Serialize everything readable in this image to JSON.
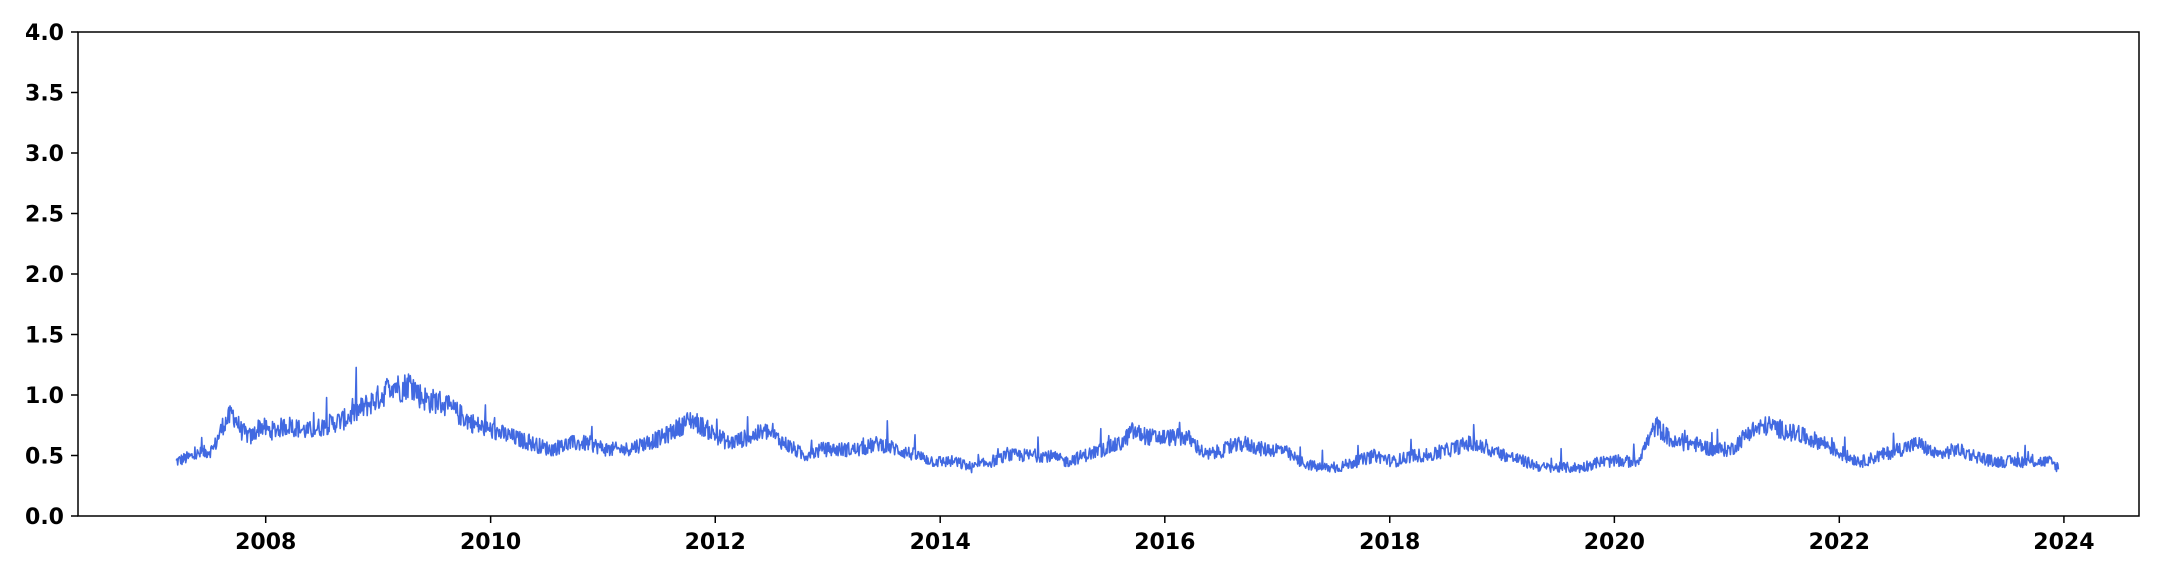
{
  "chart_data": {
    "type": "line",
    "title": "",
    "xlabel": "",
    "ylabel": "",
    "xlim": [
      "2006-05-01",
      "2024-09-01"
    ],
    "ylim": [
      0,
      4.0
    ],
    "x_ticks": [
      "2008",
      "2010",
      "2012",
      "2014",
      "2016",
      "2018",
      "2020",
      "2022",
      "2024"
    ],
    "y_ticks": [
      "0.0",
      "0.5",
      "1.0",
      "1.5",
      "2.0",
      "2.5",
      "3.0",
      "3.5",
      "4.0"
    ],
    "grid": false,
    "legend": "none",
    "colors": {
      "line": "#4169e1"
    },
    "series": [
      {
        "x": [
          "2007-03",
          "2007-05",
          "2007-07",
          "2007-08",
          "2007-09",
          "2007-10",
          "2007-11",
          "2007-12",
          "2008-01",
          "2008-03",
          "2008-05",
          "2008-07",
          "2008-09",
          "2008-11",
          "2009-01",
          "2009-02",
          "2009-03",
          "2009-04",
          "2009-05",
          "2009-06",
          "2009-07",
          "2009-09",
          "2009-11",
          "2010-01",
          "2010-03",
          "2010-05",
          "2010-07",
          "2010-09",
          "2010-11",
          "2011-01",
          "2011-03",
          "2011-05",
          "2011-07",
          "2011-09",
          "2011-10",
          "2011-12",
          "2012-02",
          "2012-04",
          "2012-06",
          "2012-08",
          "2012-10",
          "2012-12",
          "2013-02",
          "2013-04",
          "2013-06",
          "2013-08",
          "2013-10",
          "2013-12",
          "2014-02",
          "2014-04",
          "2014-06",
          "2014-08",
          "2014-10",
          "2014-12",
          "2015-02",
          "2015-04",
          "2015-06",
          "2015-08",
          "2015-09",
          "2015-11",
          "2016-01",
          "2016-03",
          "2016-05",
          "2016-07",
          "2016-09",
          "2016-11",
          "2017-01",
          "2017-03",
          "2017-05",
          "2017-07",
          "2017-09",
          "2017-11",
          "2018-01",
          "2018-03",
          "2018-05",
          "2018-07",
          "2018-09",
          "2018-11",
          "2019-01",
          "2019-03",
          "2019-05",
          "2019-07",
          "2019-09",
          "2019-11",
          "2020-01",
          "2020-03",
          "2020-04",
          "2020-05",
          "2020-07",
          "2020-09",
          "2020-11",
          "2021-01",
          "2021-03",
          "2021-05",
          "2021-07",
          "2021-09",
          "2021-11",
          "2022-01",
          "2022-03",
          "2022-05",
          "2022-07",
          "2022-09",
          "2022-11",
          "2023-01",
          "2023-03",
          "2023-05",
          "2023-07",
          "2023-09",
          "2023-11",
          "2023-12"
        ],
        "values": [
          0.45,
          0.5,
          0.55,
          0.75,
          0.85,
          0.7,
          0.65,
          0.75,
          0.7,
          0.75,
          0.7,
          0.75,
          0.8,
          0.9,
          1.0,
          1.1,
          1.05,
          1.1,
          1.0,
          0.95,
          0.95,
          0.85,
          0.75,
          0.7,
          0.65,
          0.6,
          0.55,
          0.6,
          0.6,
          0.55,
          0.55,
          0.6,
          0.65,
          0.75,
          0.8,
          0.7,
          0.6,
          0.65,
          0.7,
          0.6,
          0.5,
          0.55,
          0.55,
          0.55,
          0.6,
          0.55,
          0.5,
          0.45,
          0.45,
          0.4,
          0.45,
          0.5,
          0.5,
          0.5,
          0.45,
          0.5,
          0.55,
          0.6,
          0.7,
          0.65,
          0.65,
          0.65,
          0.5,
          0.55,
          0.6,
          0.55,
          0.55,
          0.45,
          0.4,
          0.4,
          0.45,
          0.5,
          0.45,
          0.5,
          0.5,
          0.55,
          0.6,
          0.55,
          0.5,
          0.45,
          0.4,
          0.4,
          0.4,
          0.45,
          0.45,
          0.45,
          0.6,
          0.75,
          0.6,
          0.6,
          0.55,
          0.55,
          0.7,
          0.75,
          0.7,
          0.65,
          0.6,
          0.5,
          0.45,
          0.5,
          0.55,
          0.6,
          0.5,
          0.55,
          0.5,
          0.45,
          0.45,
          0.45,
          0.45,
          0.4
        ]
      }
    ]
  }
}
